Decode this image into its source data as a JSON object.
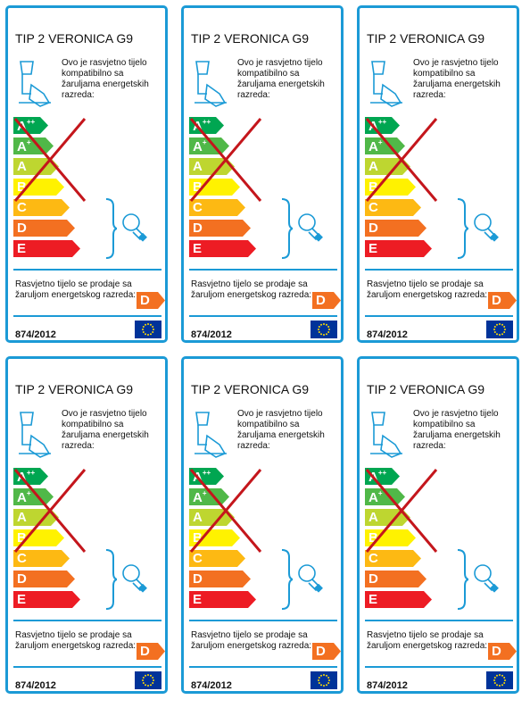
{
  "labels": [
    {
      "title": "TIP 2 VERONICA G9",
      "compat_text": "Ovo je rasvjetno tijelo kompatibilno sa žaruljama energetskih razreda:",
      "classes": [
        {
          "letter": "A",
          "sup": "++"
        },
        {
          "letter": "A",
          "sup": "+"
        },
        {
          "letter": "A",
          "sup": ""
        },
        {
          "letter": "B",
          "sup": ""
        },
        {
          "letter": "C",
          "sup": ""
        },
        {
          "letter": "D",
          "sup": ""
        },
        {
          "letter": "E",
          "sup": ""
        }
      ],
      "sale_text": "Rasvjetno tijelo se prodaje sa žaruljom energetskog razreda:",
      "rated_class": "D",
      "regulation": "874/2012"
    },
    {
      "title": "TIP 2 VERONICA G9",
      "compat_text": "Ovo je rasvjetno tijelo kompatibilno sa žaruljama energetskih razreda:",
      "classes": [
        {
          "letter": "A",
          "sup": "++"
        },
        {
          "letter": "A",
          "sup": "+"
        },
        {
          "letter": "A",
          "sup": ""
        },
        {
          "letter": "B",
          "sup": ""
        },
        {
          "letter": "C",
          "sup": ""
        },
        {
          "letter": "D",
          "sup": ""
        },
        {
          "letter": "E",
          "sup": ""
        }
      ],
      "sale_text": "Rasvjetno tijelo se prodaje sa žaruljom energetskog razreda:",
      "rated_class": "D",
      "regulation": "874/2012"
    },
    {
      "title": "TIP 2 VERONICA G9",
      "compat_text": "Ovo je rasvjetno tijelo kompatibilno sa žaruljama energetskih razreda:",
      "classes": [
        {
          "letter": "A",
          "sup": "++"
        },
        {
          "letter": "A",
          "sup": "+"
        },
        {
          "letter": "A",
          "sup": ""
        },
        {
          "letter": "B",
          "sup": ""
        },
        {
          "letter": "C",
          "sup": ""
        },
        {
          "letter": "D",
          "sup": ""
        },
        {
          "letter": "E",
          "sup": ""
        }
      ],
      "sale_text": "Rasvjetno tijelo se prodaje sa žaruljom energetskog razreda:",
      "rated_class": "D",
      "regulation": "874/2012"
    },
    {
      "title": "TIP 2 VERONICA G9",
      "compat_text": "Ovo je rasvjetno tijelo kompatibilno sa žaruljama energetskih razreda:",
      "classes": [
        {
          "letter": "A",
          "sup": "++"
        },
        {
          "letter": "A",
          "sup": "+"
        },
        {
          "letter": "A",
          "sup": ""
        },
        {
          "letter": "B",
          "sup": ""
        },
        {
          "letter": "C",
          "sup": ""
        },
        {
          "letter": "D",
          "sup": ""
        },
        {
          "letter": "E",
          "sup": ""
        }
      ],
      "sale_text": "Rasvjetno tijelo se prodaje sa žaruljom energetskog razreda:",
      "rated_class": "D",
      "regulation": "874/2012"
    },
    {
      "title": "TIP 2 VERONICA G9",
      "compat_text": "Ovo je rasvjetno tijelo kompatibilno sa žaruljama energetskih razreda:",
      "classes": [
        {
          "letter": "A",
          "sup": "++"
        },
        {
          "letter": "A",
          "sup": "+"
        },
        {
          "letter": "A",
          "sup": ""
        },
        {
          "letter": "B",
          "sup": ""
        },
        {
          "letter": "C",
          "sup": ""
        },
        {
          "letter": "D",
          "sup": ""
        },
        {
          "letter": "E",
          "sup": ""
        }
      ],
      "sale_text": "Rasvjetno tijelo se prodaje sa žaruljom energetskog razreda:",
      "rated_class": "D",
      "regulation": "874/2012"
    },
    {
      "title": "TIP 2 VERONICA G9",
      "compat_text": "Ovo je rasvjetno tijelo kompatibilno sa žaruljama energetskih razreda:",
      "classes": [
        {
          "letter": "A",
          "sup": "++"
        },
        {
          "letter": "A",
          "sup": "+"
        },
        {
          "letter": "A",
          "sup": ""
        },
        {
          "letter": "B",
          "sup": ""
        },
        {
          "letter": "C",
          "sup": ""
        },
        {
          "letter": "D",
          "sup": ""
        },
        {
          "letter": "E",
          "sup": ""
        }
      ],
      "sale_text": "Rasvjetno tijelo se prodaje sa žaruljom energetskog razreda:",
      "rated_class": "D",
      "regulation": "874/2012"
    }
  ]
}
